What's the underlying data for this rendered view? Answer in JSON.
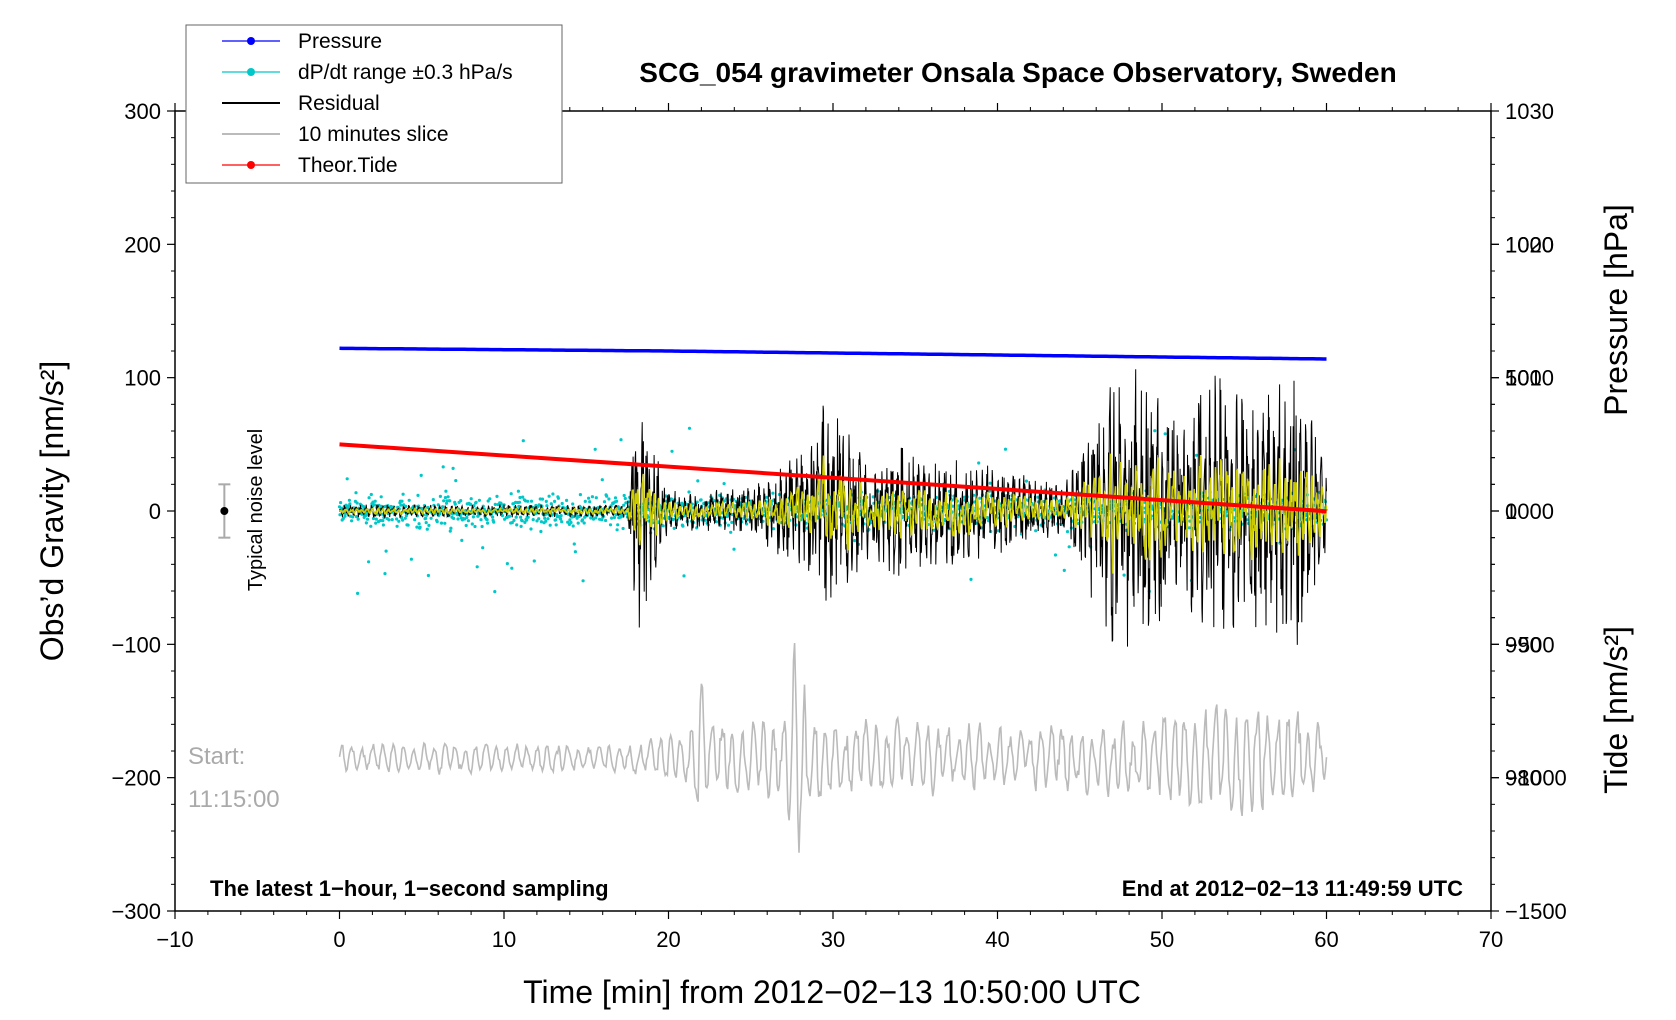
{
  "chart_data": {
    "type": "line",
    "title": "SCG_054 gravimeter Onsala Space Observatory, Sweden",
    "xlabel": "Time [min] from 2012−02−13 10:50:00 UTC",
    "ylabel_left": "Obs’d Gravity [nm/s²]",
    "ylabel_right_top": "Pressure [hPa]",
    "ylabel_right_bottom": "Tide [nm/s²]",
    "xlim": [
      -10,
      70
    ],
    "ylim_left": [
      -300,
      300
    ],
    "ylim_pressure": [
      970,
      1030
    ],
    "ylim_tide": [
      -1500,
      1500
    ],
    "x_ticks": [
      "−10",
      "0",
      "10",
      "20",
      "30",
      "40",
      "50",
      "60",
      "70"
    ],
    "y_ticks_left": [
      "300",
      "200",
      "100",
      "0",
      "−100",
      "−200",
      "−300"
    ],
    "pressure_ticks": [
      "1030",
      "1020",
      "1010",
      "1000",
      "990",
      "980"
    ],
    "tide_ticks": [
      "1000",
      "500",
      "0",
      "−500",
      "−1000",
      "−1500"
    ],
    "colors": {
      "pressure": "#0000ff",
      "dpdt": "#00c8c8",
      "residual": "#000000",
      "residual_filtered": "#cccc00",
      "slice": "#bbbbbb",
      "tide": "#ff0000"
    },
    "legend": {
      "placement": "top-left",
      "entries": [
        {
          "label": "Pressure",
          "color": "#0000ff",
          "marker": true
        },
        {
          "label": "dP/dt range ±0.3 hPa/s",
          "color": "#00c8c8",
          "marker": true
        },
        {
          "label": "Residual",
          "color": "#000000",
          "marker": false
        },
        {
          "label": "10 minutes slice",
          "color": "#bbbbbb",
          "marker": false
        },
        {
          "label": "Theor.Tide",
          "color": "#ff0000",
          "marker": true
        }
      ]
    },
    "series": [
      {
        "name": "Pressure",
        "axis": "pressure",
        "x": [
          0,
          20,
          40,
          60
        ],
        "values": [
          1012.2,
          1012.0,
          1011.7,
          1011.4
        ]
      },
      {
        "name": "dP/dt range ±0.3 hPa/s",
        "axis": "pressure",
        "center": 1000.0,
        "spread": 1.8,
        "x_range": [
          0,
          60
        ]
      },
      {
        "name": "Theor.Tide",
        "axis": "tide",
        "x": [
          0,
          60
        ],
        "values": [
          250,
          -1
        ]
      },
      {
        "name": "Residual",
        "axis": "left",
        "envelope_x": [
          0,
          17.5,
          18.0,
          20,
          25,
          28.5,
          29.5,
          32,
          34,
          36,
          40,
          44,
          45.5,
          47,
          49,
          51,
          53,
          55,
          57,
          58.5,
          60
        ],
        "envelope_amp": [
          5,
          5,
          100,
          15,
          18,
          50,
          95,
          40,
          55,
          45,
          35,
          20,
          60,
          115,
          105,
          70,
          105,
          100,
          95,
          105,
          35
        ]
      },
      {
        "name": "10 minutes slice",
        "axis": "left",
        "offset": -185,
        "envelope_x": [
          0,
          18,
          21,
          22,
          23,
          27,
          27.6,
          28.5,
          30,
          35,
          40,
          47,
          53,
          55.5,
          58.5,
          60
        ],
        "envelope_amp": [
          12,
          12,
          20,
          60,
          30,
          35,
          90,
          50,
          30,
          30,
          25,
          30,
          45,
          45,
          40,
          20
        ]
      }
    ],
    "annotations": {
      "bottom_left": "The latest 1−hour, 1−second sampling",
      "bottom_right": "End at 2012−02−13 11:49:59 UTC",
      "start_label": "Start:",
      "start_time": "11:15:00",
      "noise_label": "Typical noise level",
      "noise_range": [
        -20,
        20
      ],
      "noise_x": -7
    }
  }
}
